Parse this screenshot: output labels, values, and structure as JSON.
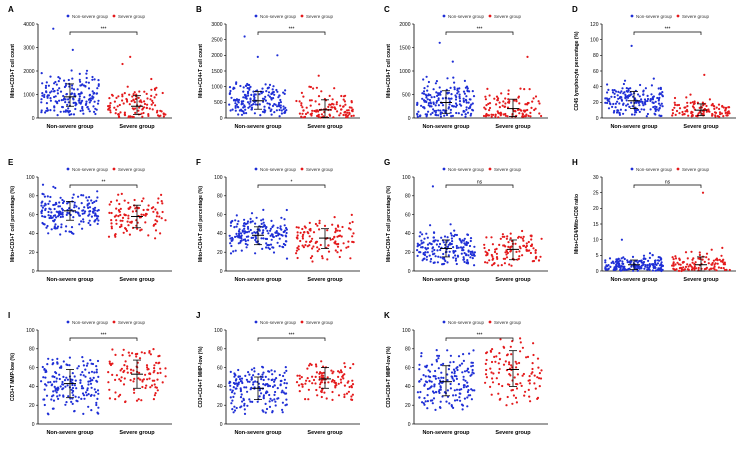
{
  "colors": {
    "non_severe": "#1f2fd6",
    "severe": "#e41a1c",
    "axis": "#000000"
  },
  "chart_data": [
    {
      "letter": "A",
      "type": "scatter",
      "ylabel": "Mito+CD3+T cell count",
      "ylim": [
        0,
        4000
      ],
      "yticks": [
        0,
        1000,
        2000,
        3000,
        4000
      ],
      "categories": [
        "Non-severe group",
        "Severe group"
      ],
      "legend": [
        "Non-severe group",
        "Severe group"
      ],
      "series": [
        {
          "name": "Non-severe group",
          "mean": 900,
          "sd_low": 500,
          "sd_high": 1450,
          "range": [
            100,
            2800
          ],
          "outliers": [
            3800,
            2900
          ]
        },
        {
          "name": "Severe group",
          "mean": 500,
          "sd_low": 150,
          "sd_high": 950,
          "range": [
            20,
            1700
          ],
          "outliers": [
            2600,
            2300
          ]
        }
      ],
      "significance": "***"
    },
    {
      "letter": "B",
      "type": "scatter",
      "ylabel": "Mito+CD4+T cell count",
      "ylim": [
        0,
        3000
      ],
      "yticks": [
        0,
        500,
        1000,
        1500,
        2000,
        2500,
        3000
      ],
      "categories": [
        "Non-severe group",
        "Severe group"
      ],
      "legend": [
        "Non-severe group",
        "Severe group"
      ],
      "series": [
        {
          "name": "Non-severe group",
          "mean": 550,
          "sd_low": 280,
          "sd_high": 850,
          "range": [
            50,
            1500
          ],
          "outliers": [
            2600,
            2000,
            1950
          ]
        },
        {
          "name": "Severe group",
          "mean": 260,
          "sd_low": 20,
          "sd_high": 580,
          "range": [
            10,
            1000
          ],
          "outliers": [
            1350
          ]
        }
      ],
      "significance": "***"
    },
    {
      "letter": "C",
      "type": "scatter",
      "ylabel": "Mito+CD8+T cell count",
      "ylim": [
        0,
        2000
      ],
      "yticks": [
        0,
        500,
        1000,
        1500,
        2000
      ],
      "categories": [
        "Non-severe group",
        "Severe group"
      ],
      "legend": [
        "Non-severe group",
        "Severe group"
      ],
      "series": [
        {
          "name": "Non-severe group",
          "mean": 330,
          "sd_low": 100,
          "sd_high": 580,
          "range": [
            20,
            900
          ],
          "outliers": [
            1600,
            1200
          ]
        },
        {
          "name": "Severe group",
          "mean": 200,
          "sd_low": 30,
          "sd_high": 400,
          "range": [
            10,
            650
          ],
          "outliers": [
            1300
          ]
        }
      ],
      "significance": "***"
    },
    {
      "letter": "D",
      "type": "scatter",
      "ylabel": "CD45 lymphocyte percentage (%)",
      "ylim": [
        0,
        120
      ],
      "yticks": [
        0,
        20,
        40,
        60,
        80,
        100,
        120
      ],
      "categories": [
        "Non-severe group",
        "Severe group"
      ],
      "legend": [
        "Non-severe group",
        "Severe group"
      ],
      "series": [
        {
          "name": "Non-severe group",
          "mean": 22,
          "sd_low": 12,
          "sd_high": 34,
          "range": [
            2,
            55
          ],
          "outliers": [
            92
          ]
        },
        {
          "name": "Severe group",
          "mean": 10,
          "sd_low": 3,
          "sd_high": 18,
          "range": [
            1,
            35
          ],
          "outliers": [
            55
          ]
        }
      ],
      "significance": "***"
    },
    {
      "letter": "E",
      "type": "scatter",
      "ylabel": "Mito+CD3+T cell percentage (%)",
      "ylim": [
        0,
        100
      ],
      "yticks": [
        0,
        20,
        40,
        60,
        80,
        100
      ],
      "categories": [
        "Non-severe group",
        "Severe group"
      ],
      "legend": [
        "Non-severe group",
        "Severe group"
      ],
      "series": [
        {
          "name": "Non-severe group",
          "mean": 64,
          "sd_low": 54,
          "sd_high": 74,
          "range": [
            25,
            92
          ],
          "outliers": []
        },
        {
          "name": "Severe group",
          "mean": 58,
          "sd_low": 46,
          "sd_high": 70,
          "range": [
            20,
            85
          ],
          "outliers": []
        }
      ],
      "significance": "**"
    },
    {
      "letter": "F",
      "type": "scatter",
      "ylabel": "Mito+CD4+T cell percentage (%)",
      "ylim": [
        0,
        100
      ],
      "yticks": [
        0,
        20,
        40,
        60,
        80,
        100
      ],
      "categories": [
        "Non-severe group",
        "Severe group"
      ],
      "legend": [
        "Non-severe group",
        "Severe group"
      ],
      "series": [
        {
          "name": "Non-severe group",
          "mean": 38,
          "sd_low": 28,
          "sd_high": 47,
          "range": [
            5,
            68
          ],
          "outliers": []
        },
        {
          "name": "Severe group",
          "mean": 35,
          "sd_low": 24,
          "sd_high": 45,
          "range": [
            10,
            65
          ],
          "outliers": []
        }
      ],
      "significance": "*"
    },
    {
      "letter": "G",
      "type": "scatter",
      "ylabel": "Mito+CD8+T cell percentage (%)",
      "ylim": [
        0,
        100
      ],
      "yticks": [
        0,
        20,
        40,
        60,
        80,
        100
      ],
      "categories": [
        "Non-severe group",
        "Severe group"
      ],
      "legend": [
        "Non-severe group",
        "Severe group"
      ],
      "series": [
        {
          "name": "Non-severe group",
          "mean": 24,
          "sd_low": 15,
          "sd_high": 33,
          "range": [
            5,
            55
          ],
          "outliers": [
            90
          ]
        },
        {
          "name": "Severe group",
          "mean": 23,
          "sd_low": 12,
          "sd_high": 33,
          "range": [
            5,
            62
          ],
          "outliers": []
        }
      ],
      "significance": "ns"
    },
    {
      "letter": "H",
      "type": "scatter",
      "ylabel": "Mito+CD4/Mito+CD8 ratio",
      "ylim": [
        0,
        30
      ],
      "yticks": [
        0,
        5,
        10,
        15,
        20,
        25,
        30
      ],
      "categories": [
        "Non-severe group",
        "Severe group"
      ],
      "legend": [
        "Non-severe group",
        "Severe group"
      ],
      "series": [
        {
          "name": "Non-severe group",
          "mean": 2,
          "sd_low": 0.5,
          "sd_high": 3.5,
          "range": [
            0,
            7
          ],
          "outliers": [
            10
          ]
        },
        {
          "name": "Severe group",
          "mean": 2,
          "sd_low": 0,
          "sd_high": 4.5,
          "range": [
            0,
            8
          ],
          "outliers": [
            25
          ]
        }
      ],
      "significance": "ns"
    },
    {
      "letter": "I",
      "type": "scatter",
      "ylabel": "CD3+T MMP-low (%)",
      "ylim": [
        0,
        100
      ],
      "yticks": [
        0,
        20,
        40,
        60,
        80,
        100
      ],
      "categories": [
        "Non-severe group",
        "Severe group"
      ],
      "legend": [
        "Non-severe group",
        "Severe group"
      ],
      "series": [
        {
          "name": "Non-severe group",
          "mean": 43,
          "sd_low": 28,
          "sd_high": 58,
          "range": [
            10,
            72
          ],
          "outliers": []
        },
        {
          "name": "Severe group",
          "mean": 53,
          "sd_low": 38,
          "sd_high": 68,
          "range": [
            15,
            82
          ],
          "outliers": []
        }
      ],
      "significance": "***"
    },
    {
      "letter": "J",
      "type": "scatter",
      "ylabel": "CD3+CD4+T MMP-low (%)",
      "ylim": [
        0,
        100
      ],
      "yticks": [
        0,
        20,
        40,
        60,
        80,
        100
      ],
      "categories": [
        "Non-severe group",
        "Severe group"
      ],
      "legend": [
        "Non-severe group",
        "Severe group"
      ],
      "series": [
        {
          "name": "Non-severe group",
          "mean": 38,
          "sd_low": 26,
          "sd_high": 50,
          "range": [
            10,
            62
          ],
          "outliers": []
        },
        {
          "name": "Severe group",
          "mean": 48,
          "sd_low": 38,
          "sd_high": 60,
          "range": [
            18,
            70
          ],
          "outliers": []
        }
      ],
      "significance": "***"
    },
    {
      "letter": "K",
      "type": "scatter",
      "ylabel": "CD3+CD8+T MMP-low (%)",
      "ylim": [
        0,
        100
      ],
      "yticks": [
        0,
        20,
        40,
        60,
        80,
        100
      ],
      "categories": [
        "Non-severe group",
        "Severe group"
      ],
      "legend": [
        "Non-severe group",
        "Severe group"
      ],
      "series": [
        {
          "name": "Non-severe group",
          "mean": 45,
          "sd_low": 30,
          "sd_high": 62,
          "range": [
            15,
            80
          ],
          "outliers": []
        },
        {
          "name": "Severe group",
          "mean": 58,
          "sd_low": 40,
          "sd_high": 78,
          "range": [
            18,
            92
          ],
          "outliers": []
        }
      ],
      "significance": "***"
    }
  ]
}
